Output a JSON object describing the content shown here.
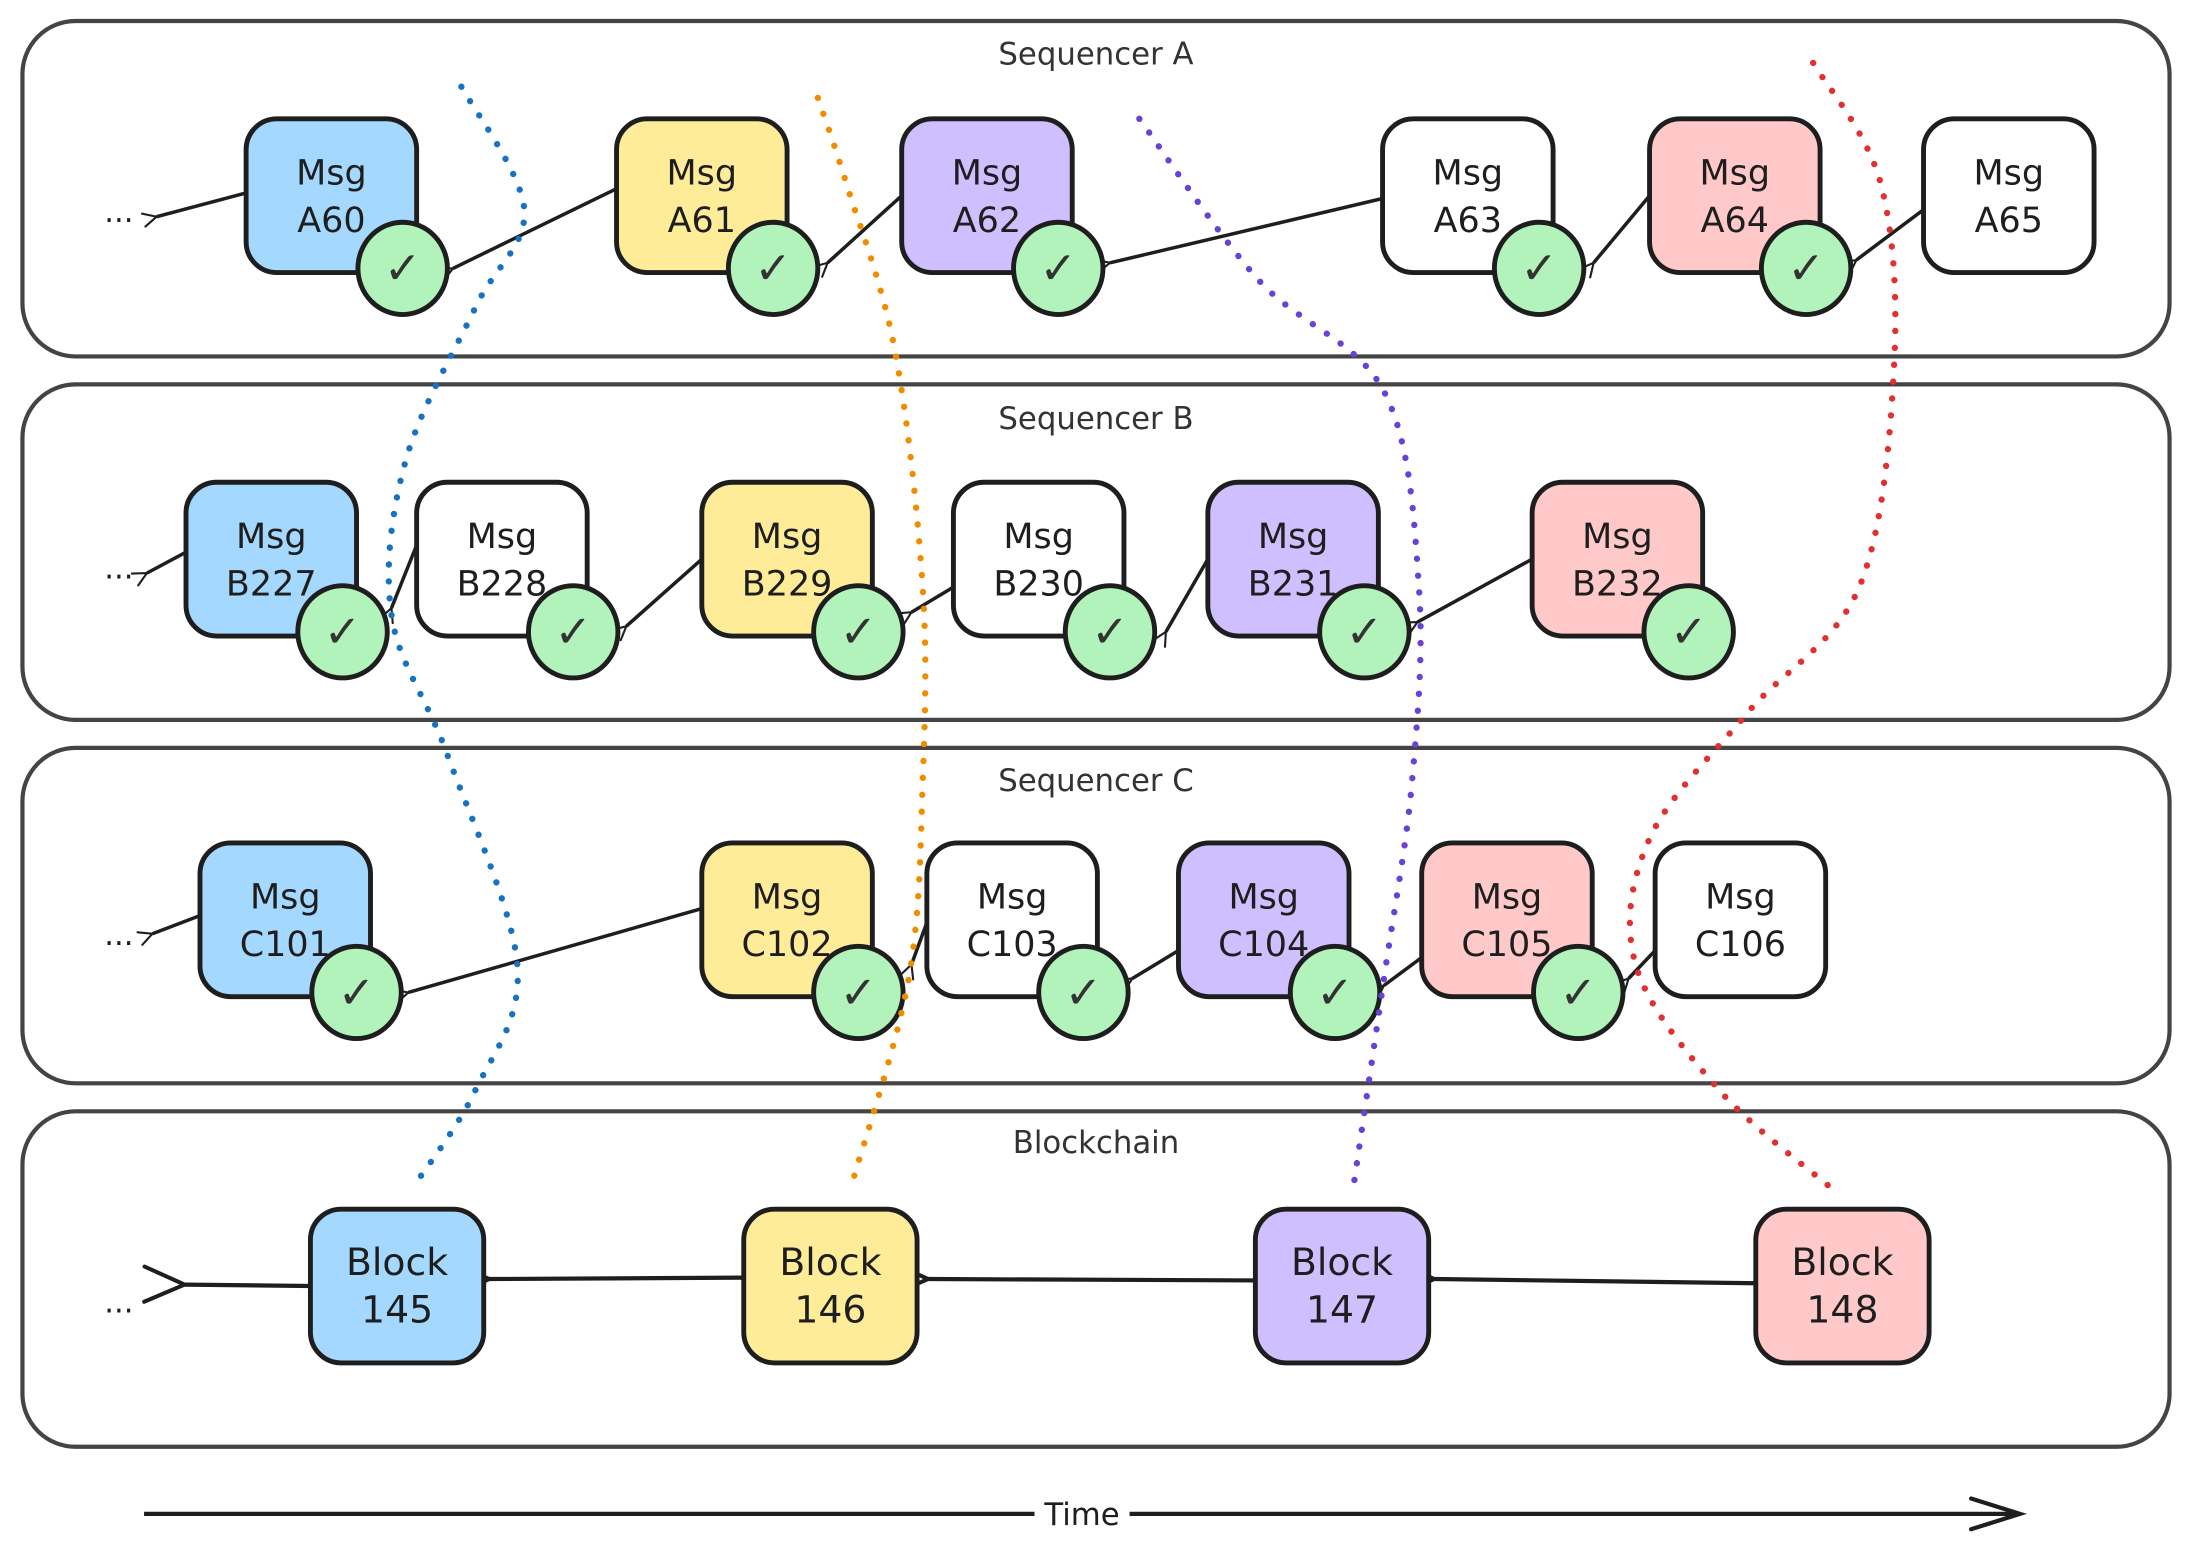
{
  "colors": {
    "blue": "#a5d8ff",
    "yellow": "#ffec99",
    "purple": "#d0bfff",
    "red": "#ffc9c9",
    "white": "#ffffff",
    "check": "#b2f2bb",
    "line_blue": "#1971c2",
    "line_orange": "#f08c00",
    "line_purple": "#6741d9",
    "line_red": "#e03131",
    "stroke": "#1e1e1e",
    "panel_stroke": "#444444"
  },
  "ellipsis": "...",
  "check_glyph": "✓",
  "panels": [
    {
      "title": "Sequencer A",
      "boxes": [
        {
          "line1": "Msg",
          "line2": "A60",
          "color": "blue",
          "confirmed": true
        },
        {
          "line1": "Msg",
          "line2": "A61",
          "color": "yellow",
          "confirmed": true
        },
        {
          "line1": "Msg",
          "line2": "A62",
          "color": "purple",
          "confirmed": true
        },
        {
          "line1": "Msg",
          "line2": "A63",
          "color": "white",
          "confirmed": true
        },
        {
          "line1": "Msg",
          "line2": "A64",
          "color": "red",
          "confirmed": true
        },
        {
          "line1": "Msg",
          "line2": "A65",
          "color": "white",
          "confirmed": false
        }
      ]
    },
    {
      "title": "Sequencer B",
      "boxes": [
        {
          "line1": "Msg",
          "line2": "B227",
          "color": "blue",
          "confirmed": true
        },
        {
          "line1": "Msg",
          "line2": "B228",
          "color": "white",
          "confirmed": true
        },
        {
          "line1": "Msg",
          "line2": "B229",
          "color": "yellow",
          "confirmed": true
        },
        {
          "line1": "Msg",
          "line2": "B230",
          "color": "white",
          "confirmed": true
        },
        {
          "line1": "Msg",
          "line2": "B231",
          "color": "purple",
          "confirmed": true
        },
        {
          "line1": "Msg",
          "line2": "B232",
          "color": "red",
          "confirmed": true
        }
      ]
    },
    {
      "title": "Sequencer C",
      "boxes": [
        {
          "line1": "Msg",
          "line2": "C101",
          "color": "blue",
          "confirmed": true
        },
        {
          "line1": "Msg",
          "line2": "C102",
          "color": "yellow",
          "confirmed": true
        },
        {
          "line1": "Msg",
          "line2": "C103",
          "color": "white",
          "confirmed": true
        },
        {
          "line1": "Msg",
          "line2": "C104",
          "color": "purple",
          "confirmed": true
        },
        {
          "line1": "Msg",
          "line2": "C105",
          "color": "red",
          "confirmed": true
        },
        {
          "line1": "Msg",
          "line2": "C106",
          "color": "white",
          "confirmed": false
        }
      ]
    },
    {
      "title": "Blockchain",
      "boxes": [
        {
          "line1": "Block",
          "line2": "145",
          "color": "blue",
          "confirmed": false
        },
        {
          "line1": "Block",
          "line2": "146",
          "color": "yellow",
          "confirmed": false
        },
        {
          "line1": "Block",
          "line2": "147",
          "color": "purple",
          "confirmed": false
        },
        {
          "line1": "Block",
          "line2": "148",
          "color": "red",
          "confirmed": false
        }
      ]
    }
  ],
  "inclusion_lines": [
    "line_blue",
    "line_orange",
    "line_purple",
    "line_red"
  ],
  "time_axis": {
    "label": "Time"
  }
}
